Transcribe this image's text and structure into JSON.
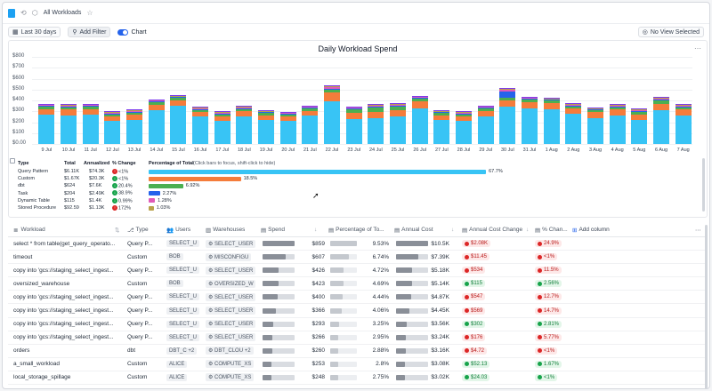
{
  "header": {
    "title": "All Workloads"
  },
  "toolbar": {
    "date_range": "Last 30 days",
    "add_filter": "Add Filter",
    "chart_toggle": "Chart",
    "view": "No View Selected"
  },
  "chart_data": {
    "type": "bar",
    "title": "Daily Workload Spend",
    "ylim": [
      0,
      800
    ],
    "yticks": [
      "$800",
      "$700",
      "$600",
      "$500",
      "$400",
      "$300",
      "$200",
      "$100",
      "$0.00"
    ],
    "categories": [
      "9 Jul",
      "10 Jul",
      "11 Jul",
      "12 Jul",
      "13 Jul",
      "14 Jul",
      "15 Jul",
      "16 Jul",
      "17 Jul",
      "18 Jul",
      "19 Jul",
      "20 Jul",
      "21 Jul",
      "22 Jul",
      "23 Jul",
      "24 Jul",
      "25 Jul",
      "26 Jul",
      "27 Jul",
      "28 Jul",
      "29 Jul",
      "30 Jul",
      "31 Jul",
      "1 Aug",
      "2 Aug",
      "3 Aug",
      "4 Aug",
      "5 Aug",
      "6 Aug",
      "7 Aug"
    ],
    "series": [
      {
        "name": "Query Pattern",
        "color": "#38c4f5",
        "values": [
          270,
          260,
          270,
          210,
          220,
          310,
          350,
          250,
          210,
          250,
          220,
          210,
          260,
          390,
          230,
          240,
          250,
          330,
          220,
          210,
          250,
          340,
          330,
          320,
          280,
          240,
          260,
          220,
          310,
          260
        ]
      },
      {
        "name": "Custom",
        "color": "#f57c3b",
        "values": [
          50,
          55,
          50,
          45,
          50,
          50,
          50,
          45,
          45,
          50,
          45,
          40,
          45,
          80,
          55,
          55,
          60,
          65,
          45,
          45,
          55,
          60,
          55,
          55,
          50,
          50,
          55,
          50,
          60,
          55
        ]
      },
      {
        "name": "dbt",
        "color": "#4caf50",
        "values": [
          25,
          25,
          25,
          20,
          20,
          25,
          25,
          20,
          20,
          25,
          20,
          20,
          25,
          30,
          35,
          45,
          40,
          25,
          20,
          20,
          25,
          25,
          25,
          25,
          20,
          20,
          25,
          30,
          30,
          25
        ]
      },
      {
        "name": "Task",
        "color": "#2563eb",
        "values": [
          5,
          5,
          5,
          5,
          5,
          5,
          5,
          5,
          5,
          5,
          5,
          5,
          5,
          10,
          5,
          5,
          5,
          5,
          5,
          5,
          5,
          60,
          5,
          5,
          5,
          5,
          5,
          5,
          10,
          5
        ]
      },
      {
        "name": "Dynamic Table",
        "color": "#e05ab8",
        "values": [
          10,
          10,
          10,
          10,
          10,
          10,
          10,
          10,
          10,
          10,
          10,
          10,
          10,
          15,
          10,
          10,
          10,
          10,
          10,
          10,
          10,
          15,
          10,
          10,
          10,
          10,
          10,
          10,
          10,
          10
        ]
      },
      {
        "name": "Stored Procedure",
        "color": "#b9a24a",
        "values": [
          5,
          5,
          5,
          5,
          5,
          5,
          5,
          5,
          5,
          5,
          5,
          5,
          5,
          5,
          5,
          5,
          5,
          5,
          5,
          5,
          5,
          5,
          5,
          5,
          5,
          5,
          5,
          5,
          5,
          5
        ]
      },
      {
        "name": "Other",
        "color": "#7c3aed",
        "values": [
          5,
          5,
          5,
          5,
          5,
          5,
          5,
          5,
          5,
          5,
          5,
          5,
          5,
          5,
          5,
          5,
          5,
          5,
          5,
          5,
          5,
          10,
          5,
          5,
          5,
          5,
          5,
          5,
          5,
          5
        ]
      }
    ]
  },
  "legend": {
    "headers": [
      "Type",
      "Total",
      "Annualized",
      "% Change",
      "Percentage of Total"
    ],
    "hint": "(Click bars to focus, shift-click to hide)",
    "rows": [
      {
        "type": "Query Pattern",
        "total": "$6.11K",
        "annual": "$74.3K",
        "change": "<1%",
        "dir": "r",
        "pct": "67.7%",
        "frac": 0.677,
        "color": "#38c4f5"
      },
      {
        "type": "Custom",
        "total": "$1.67K",
        "annual": "$20.3K",
        "change": "<1%",
        "dir": "g",
        "pct": "18.5%",
        "frac": 0.185,
        "color": "#f57c3b"
      },
      {
        "type": "dbt",
        "total": "$624",
        "annual": "$7.6K",
        "change": "20.4%",
        "dir": "g",
        "pct": "6.92%",
        "frac": 0.0692,
        "color": "#4caf50"
      },
      {
        "type": "Task",
        "total": "$204",
        "annual": "$2.49K",
        "change": "38.9%",
        "dir": "g",
        "pct": "2.27%",
        "frac": 0.0227,
        "color": "#2563eb"
      },
      {
        "type": "Dynamic Table",
        "total": "$115",
        "annual": "$1.4K",
        "change": "0.99%",
        "dir": "g",
        "pct": "1.28%",
        "frac": 0.0128,
        "color": "#e05ab8"
      },
      {
        "type": "Stored Procedure",
        "total": "$92.59",
        "annual": "$1.13K",
        "change": "172%",
        "dir": "r",
        "pct": "1.03%",
        "frac": 0.0103,
        "color": "#b9a24a"
      }
    ]
  },
  "table": {
    "columns": [
      "Workload",
      "Type",
      "Users",
      "Warehouses",
      "Spend",
      "Percentage of To...",
      "Annual Cost",
      "Annual Cost Change",
      "% Chan...",
      "Add column"
    ],
    "rows": [
      {
        "workload": "select * from table(get_query_operato...",
        "type": "Query P...",
        "user": "SELECT_U",
        "wh": "SELECT_USER",
        "spend": "$859",
        "s": 1.0,
        "pct": "9.53%",
        "annual": "$10.5K",
        "a": 1.0,
        "chg": "$2.08K",
        "cd": "red",
        "pc": "24.9%",
        "pd": "red"
      },
      {
        "workload": "timeout",
        "type": "Custom",
        "user": "BOB",
        "wh": "MISCONFIGU",
        "spend": "$607",
        "s": 0.71,
        "pct": "6.74%",
        "annual": "$7.39K",
        "a": 0.7,
        "chg": "$11.45",
        "cd": "red",
        "pc": "<1%",
        "pd": "red"
      },
      {
        "workload": "copy into 'gcs://staging_select_ingest...",
        "type": "Query P...",
        "user": "SELECT_U",
        "wh": "SELECT_USER",
        "spend": "$426",
        "s": 0.5,
        "pct": "4.72%",
        "annual": "$5.18K",
        "a": 0.49,
        "chg": "$534",
        "cd": "red",
        "pc": "11.5%",
        "pd": "red"
      },
      {
        "workload": "oversized_warehouse",
        "type": "Custom",
        "user": "BOB",
        "wh": "OVERSIZED_W",
        "spend": "$423",
        "s": 0.49,
        "pct": "4.69%",
        "annual": "$5.14K",
        "a": 0.49,
        "chg": "$115",
        "cd": "green",
        "pc": "2.56%",
        "pd": "green"
      },
      {
        "workload": "copy into 'gcs://staging_select_ingest...",
        "type": "Query P...",
        "user": "SELECT_U",
        "wh": "SELECT_USER",
        "spend": "$400",
        "s": 0.47,
        "pct": "4.44%",
        "annual": "$4.87K",
        "a": 0.46,
        "chg": "$547",
        "cd": "red",
        "pc": "12.7%",
        "pd": "red"
      },
      {
        "workload": "copy into 'gcs://staging_select_ingest...",
        "type": "Query P...",
        "user": "SELECT_U",
        "wh": "SELECT_USER",
        "spend": "$366",
        "s": 0.43,
        "pct": "4.06%",
        "annual": "$4.45K",
        "a": 0.42,
        "chg": "$569",
        "cd": "red",
        "pc": "14.7%",
        "pd": "red"
      },
      {
        "workload": "copy into 'gcs://staging_select_ingest...",
        "type": "Query P...",
        "user": "SELECT_U",
        "wh": "SELECT_USER",
        "spend": "$293",
        "s": 0.34,
        "pct": "3.25%",
        "annual": "$3.56K",
        "a": 0.34,
        "chg": "$302",
        "cd": "green",
        "pc": "2.81%",
        "pd": "green"
      },
      {
        "workload": "copy into 'gcs://staging_select_ingest...",
        "type": "Query P...",
        "user": "SELECT_U",
        "wh": "SELECT_USER",
        "spend": "$266",
        "s": 0.31,
        "pct": "2.95%",
        "annual": "$3.24K",
        "a": 0.31,
        "chg": "$176",
        "cd": "red",
        "pc": "5.77%",
        "pd": "red"
      },
      {
        "workload": "orders",
        "type": "dbt",
        "user": "DBT_C  +2",
        "wh": "DBT_CLOU  +2",
        "spend": "$260",
        "s": 0.3,
        "pct": "2.88%",
        "annual": "$3.16K",
        "a": 0.3,
        "chg": "$4.72",
        "cd": "red",
        "pc": "<1%",
        "pd": "red"
      },
      {
        "workload": "a_small_workload",
        "type": "Custom",
        "user": "ALICE",
        "wh": "COMPUTE_XS",
        "spend": "$253",
        "s": 0.29,
        "pct": "2.8%",
        "annual": "$3.08K",
        "a": 0.29,
        "chg": "$52.13",
        "cd": "green",
        "pc": "1.67%",
        "pd": "green"
      },
      {
        "workload": "local_storage_spillage",
        "type": "Custom",
        "user": "ALICE",
        "wh": "COMPUTE_XS",
        "spend": "$248",
        "s": 0.29,
        "pct": "2.75%",
        "annual": "$3.02K",
        "a": 0.29,
        "chg": "$24.03",
        "cd": "green",
        "pc": "<1%",
        "pd": "green"
      }
    ]
  }
}
